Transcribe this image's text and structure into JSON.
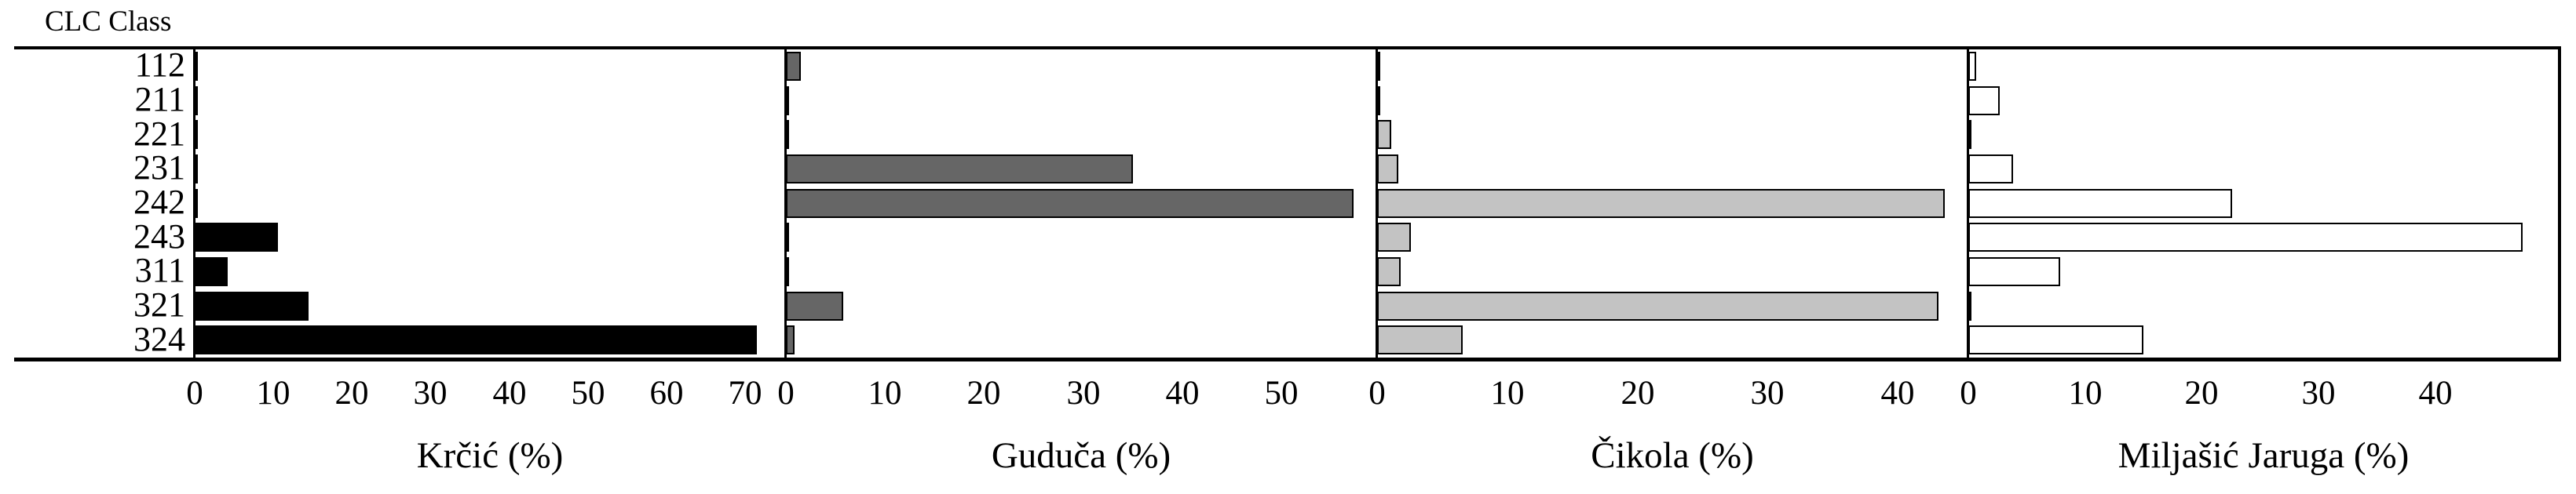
{
  "header": {
    "y_axis_title": "CLC Class"
  },
  "chart_data": {
    "type": "bar",
    "orientation": "horizontal",
    "title": "",
    "y_axis_title": "CLC Class",
    "categories": [
      "112",
      "211",
      "221",
      "231",
      "242",
      "243",
      "311",
      "321",
      "324"
    ],
    "grid": false,
    "legend": false,
    "panels": [
      {
        "title": "Krčić (%)",
        "ticks": [
          0,
          10,
          20,
          30,
          40,
          50,
          60,
          70
        ],
        "xmax": 75,
        "bar_color": "#000000",
        "values": [
          0.2,
          0.2,
          0.2,
          0.2,
          0.2,
          10.6,
          4.2,
          14.5,
          71.5
        ]
      },
      {
        "title": "Guduča (%)",
        "ticks": [
          0,
          10,
          20,
          30,
          40,
          50
        ],
        "xmax": 59.5,
        "bar_color": "#666666",
        "values": [
          1.5,
          0.2,
          0.3,
          35.0,
          57.3,
          0.2,
          0.3,
          5.8,
          0.9
        ]
      },
      {
        "title": "Čikola (%)",
        "ticks": [
          0,
          10,
          20,
          30,
          40
        ],
        "xmax": 45.3,
        "bar_color": "#c3c3c3",
        "values": [
          0.1,
          0.2,
          1.1,
          1.6,
          43.6,
          2.6,
          1.8,
          43.1,
          6.6
        ]
      },
      {
        "title": "Miljašić Jaruga (%)",
        "ticks": [
          0,
          10,
          20,
          30,
          40
        ],
        "xmax": 50.5,
        "bar_color": "#ffffff",
        "values": [
          0.7,
          2.7,
          0.1,
          3.8,
          22.6,
          47.5,
          7.9,
          0.1,
          15.0
        ]
      }
    ]
  }
}
